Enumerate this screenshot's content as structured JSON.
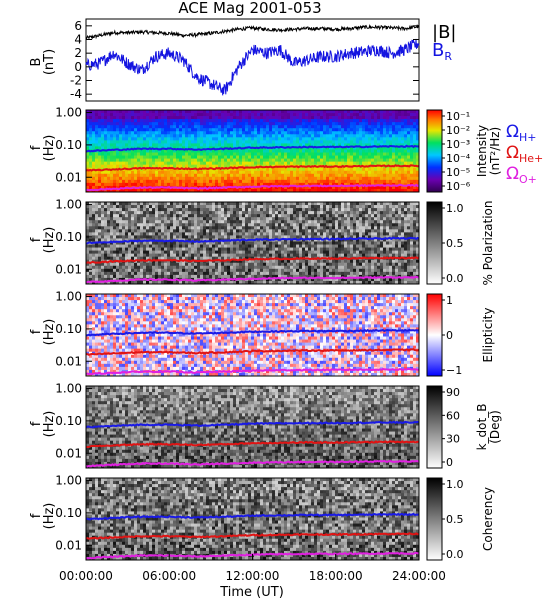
{
  "title": "ACE Mag 2001-053",
  "colors": {
    "btotal": "#000000",
    "br": "#1414e0",
    "h_plus": "#1a1ae6",
    "he_plus": "#e01414",
    "o_plus": "#e020e0"
  },
  "legend": {
    "btotal": "|B|",
    "br_main": "B",
    "br_sub": "R",
    "omega": "Ω",
    "h_sub": "H+",
    "he_sub": "He+",
    "o_sub": "O+"
  },
  "chart_data": [
    {
      "type": "line",
      "panel": "field",
      "ylabel": "B",
      "yunit": "(nT)",
      "ylim": [
        -5,
        7
      ],
      "yticks": [
        "6",
        "4",
        "2",
        "0",
        "-2",
        "-4"
      ],
      "ytick_values": [
        6,
        4,
        2,
        0,
        -2,
        -4
      ],
      "x": [
        0,
        1,
        2,
        3,
        4,
        5,
        6,
        7,
        8,
        9,
        10,
        11,
        12,
        13,
        14,
        15,
        16,
        17,
        18,
        19,
        20,
        21,
        22,
        23,
        24
      ],
      "series": [
        {
          "name": "|B|",
          "values": [
            4.2,
            4.6,
            5.0,
            5.0,
            5.1,
            5.0,
            4.9,
            4.6,
            4.7,
            4.9,
            5.2,
            5.5,
            5.7,
            5.5,
            5.4,
            5.5,
            5.6,
            5.6,
            5.5,
            5.6,
            5.8,
            5.8,
            5.7,
            5.6,
            5.9
          ]
        },
        {
          "name": "B_R",
          "values": [
            0.2,
            0.5,
            2.0,
            0.5,
            -0.5,
            1.5,
            2.0,
            1.0,
            -1.5,
            -2.5,
            -3.5,
            0.0,
            2.5,
            2.0,
            2.5,
            0.5,
            1.0,
            1.5,
            1.5,
            2.0,
            2.2,
            2.5,
            2.0,
            2.5,
            3.5
          ]
        }
      ]
    },
    {
      "type": "heatmap",
      "panel": "intensity",
      "ylabel": "f",
      "yunit": "(Hz)",
      "yticks": [
        "1.00",
        "0.10",
        "0.01"
      ],
      "colorbar_label": "Intensity",
      "colorbar_unit": "(nT²/Hz)",
      "colorbar_ticks": [
        "10⁻¹",
        "10⁻²",
        "10⁻³",
        "10⁻⁴",
        "10⁻⁵",
        "10⁻⁶"
      ]
    },
    {
      "type": "heatmap",
      "panel": "polarization",
      "ylabel": "f",
      "yunit": "(Hz)",
      "yticks": [
        "1.00",
        "0.10",
        "0.01"
      ],
      "colorbar_label": "% Polarization",
      "colorbar_ticks": [
        "1.0",
        "0.5",
        "0.0"
      ]
    },
    {
      "type": "heatmap",
      "panel": "ellipticity",
      "ylabel": "f",
      "yunit": "(Hz)",
      "yticks": [
        "1.00",
        "0.10",
        "0.01"
      ],
      "colorbar_label": "Ellipticity",
      "colorbar_ticks": [
        "1",
        "0",
        "−1"
      ]
    },
    {
      "type": "heatmap",
      "panel": "kdotb",
      "ylabel": "f",
      "yunit": "(Hz)",
      "yticks": [
        "1.00",
        "0.10",
        "0.01"
      ],
      "colorbar_label": "k_dot_B",
      "colorbar_unit": "(Deg)",
      "colorbar_ticks": [
        "90",
        "60",
        "30",
        "0"
      ]
    },
    {
      "type": "heatmap",
      "panel": "coherency",
      "ylabel": "f",
      "yunit": "(Hz)",
      "yticks": [
        "1.00",
        "0.10",
        "0.01"
      ],
      "colorbar_label": "Coherency",
      "colorbar_ticks": [
        "1.0",
        "0.5",
        "0.0"
      ]
    }
  ],
  "gyrofrequency": {
    "x": [
      0,
      2,
      4,
      6,
      8,
      10,
      12,
      14,
      16,
      18,
      20,
      22,
      24
    ],
    "h_plus": [
      0.064,
      0.07,
      0.076,
      0.076,
      0.072,
      0.076,
      0.082,
      0.084,
      0.086,
      0.086,
      0.088,
      0.09,
      0.09
    ],
    "he_plus": [
      0.016,
      0.0175,
      0.019,
      0.019,
      0.018,
      0.019,
      0.0205,
      0.021,
      0.0215,
      0.0215,
      0.022,
      0.0225,
      0.0225
    ],
    "o_plus": [
      0.004,
      0.0044,
      0.0048,
      0.0048,
      0.0045,
      0.0048,
      0.0051,
      0.0053,
      0.0054,
      0.0054,
      0.0055,
      0.0056,
      0.0056
    ]
  },
  "xaxis": {
    "ticks": [
      "00:00:00",
      "06:00:00",
      "12:00:00",
      "18:00:00",
      "24:00:00"
    ],
    "tick_values": [
      0,
      6,
      12,
      18,
      24
    ],
    "label": "Time (UT)"
  }
}
